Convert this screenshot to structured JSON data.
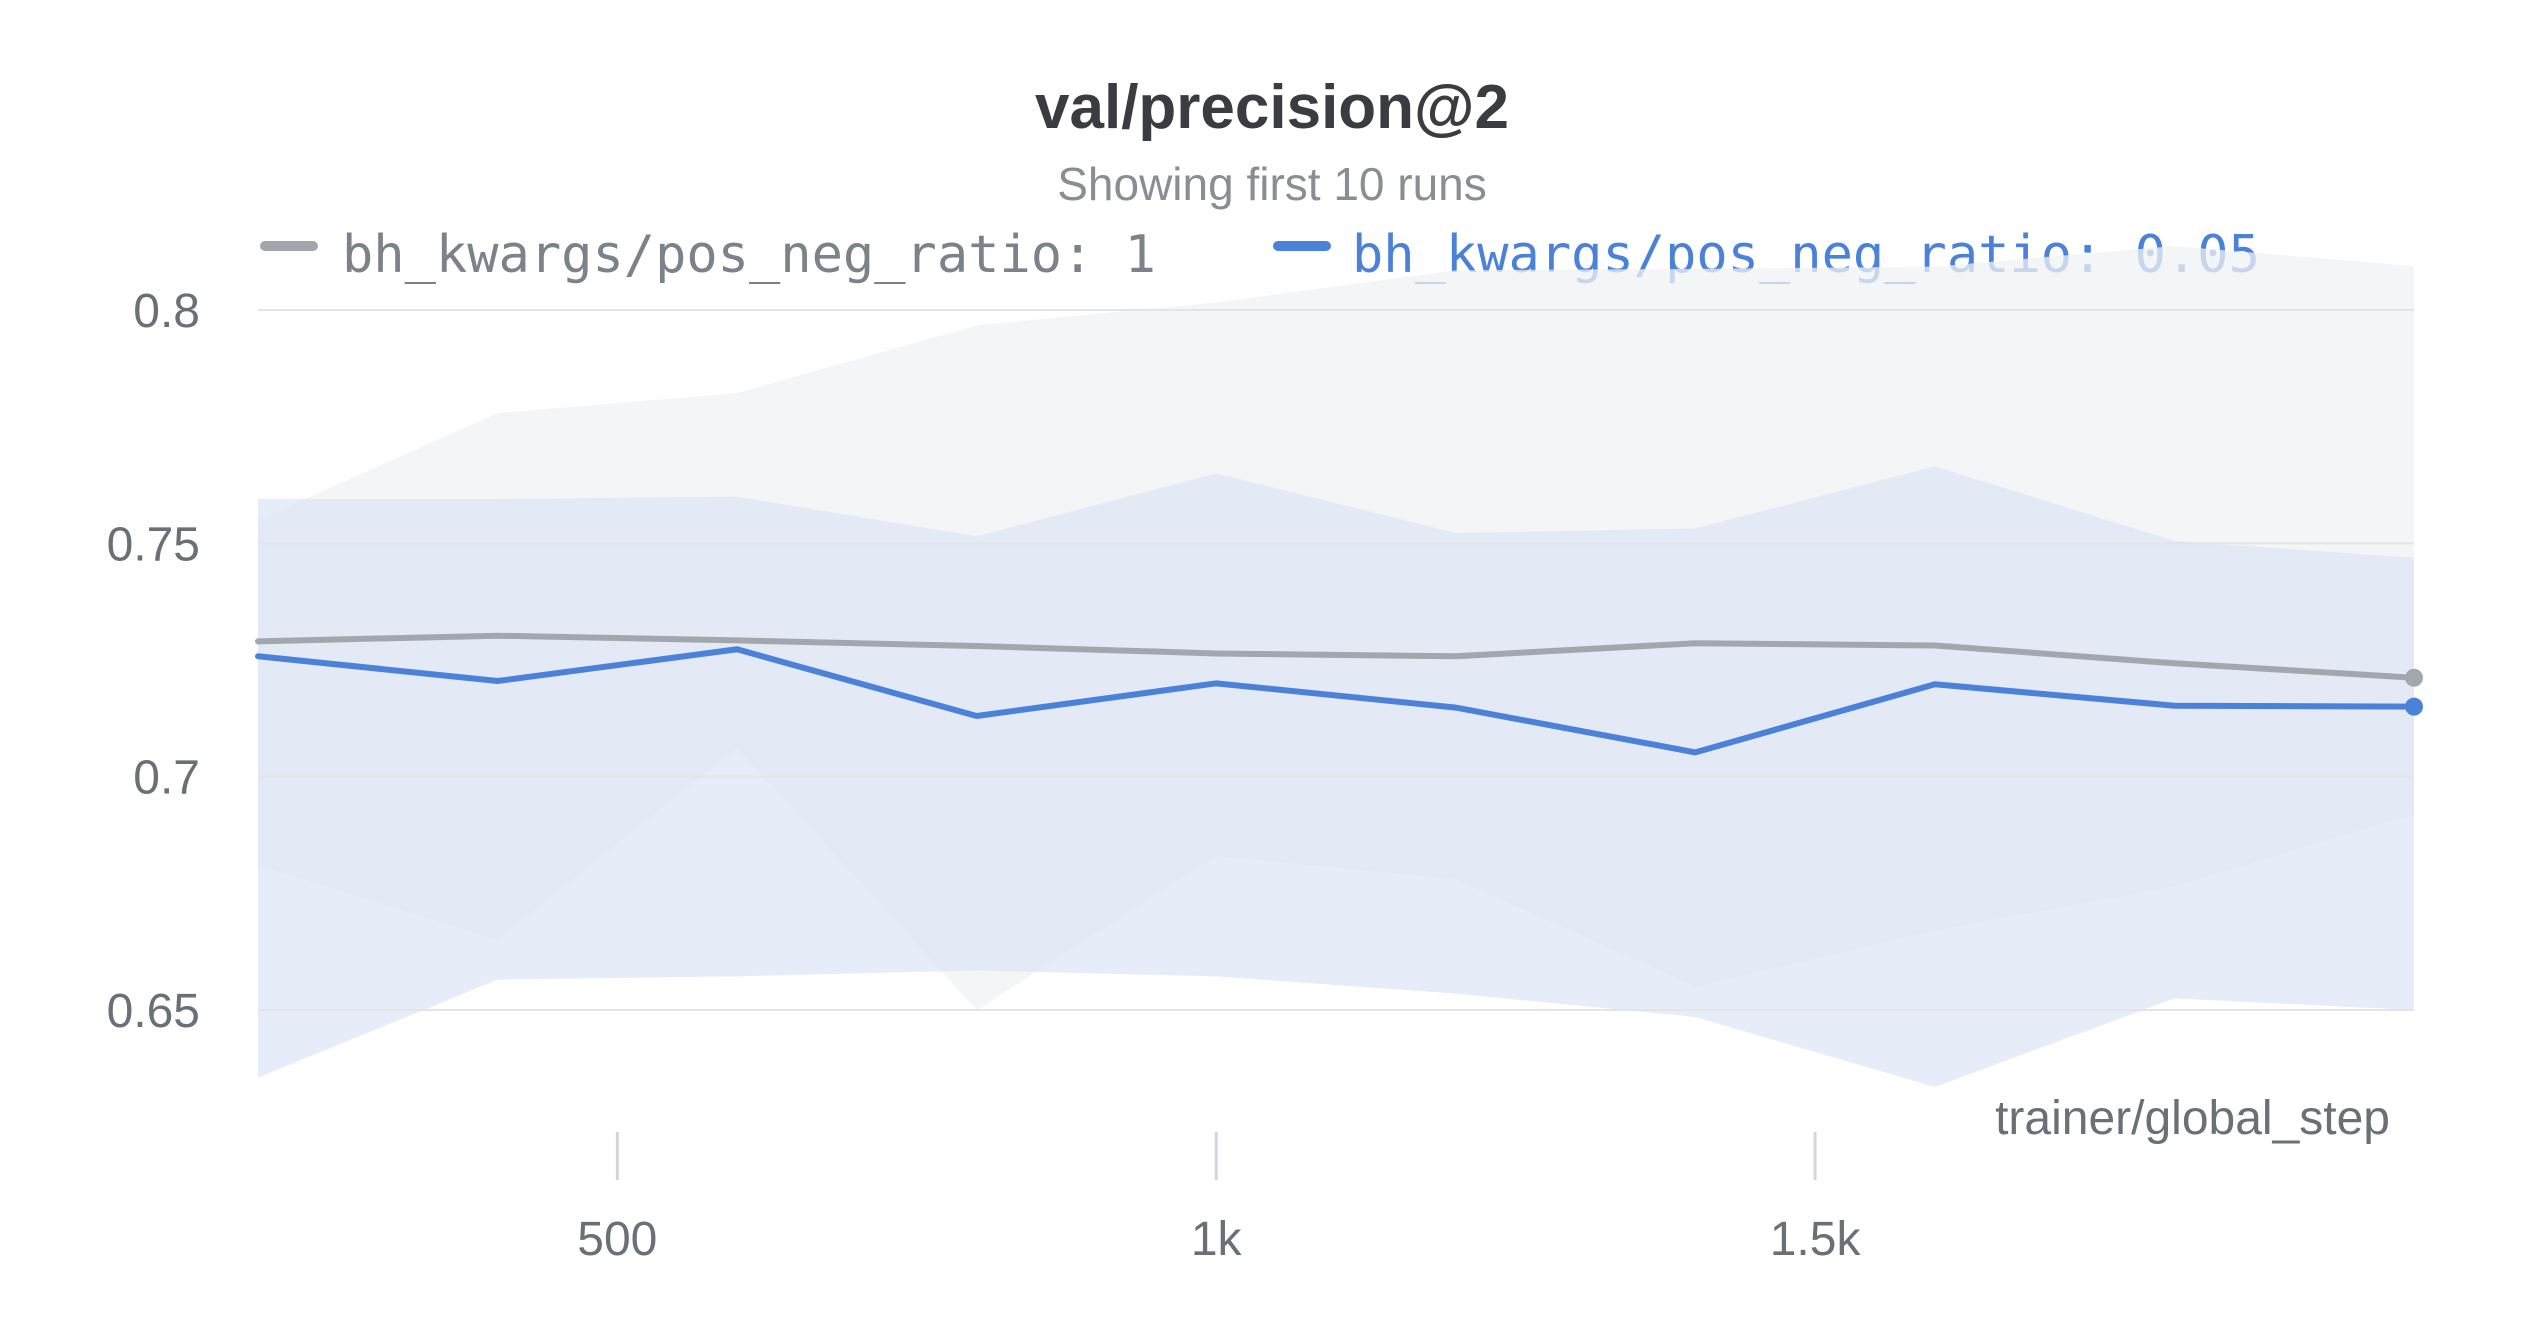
{
  "chart_data": {
    "type": "line",
    "title": "val/precision@2",
    "subtitle": "Showing first 10 runs",
    "xlabel": "trainer/global_step",
    "ylabel": "",
    "x": [
      200,
      400,
      600,
      800,
      1000,
      1200,
      1400,
      1600,
      1800,
      2000
    ],
    "xlim": [
      200,
      2000
    ],
    "ylim": [
      0.635,
      0.815
    ],
    "x_ticks": [
      500,
      1000,
      1500
    ],
    "x_tick_labels": [
      "500",
      "1k",
      "1.5k"
    ],
    "y_ticks": [
      0.65,
      0.7,
      0.75,
      0.8
    ],
    "y_tick_labels": [
      "0.65",
      "0.7",
      "0.75",
      "0.8"
    ],
    "grid": true,
    "legend_position": "top",
    "series": [
      {
        "name": "bh_kwargs/pos_neg_ratio: 1",
        "color": "#a2a6ad",
        "band_color": "#f0f1f3",
        "values": [
          0.729,
          0.7302,
          0.7292,
          0.728,
          0.7264,
          0.7258,
          0.7286,
          0.7281,
          0.7243,
          0.7212
        ],
        "upper": [
          0.755,
          0.7779,
          0.7822,
          0.7967,
          0.8016,
          0.8085,
          0.8088,
          0.8093,
          0.8137,
          0.8094
        ],
        "lower": [
          0.681,
          0.665,
          0.706,
          0.65,
          0.683,
          0.678,
          0.655,
          0.667,
          0.6765,
          0.692
        ]
      },
      {
        "name": "bh_kwargs/pos_neg_ratio: 0.05",
        "color": "#4b81d9",
        "band_color": "#dce6f5",
        "values": [
          0.7258,
          0.7205,
          0.7273,
          0.713,
          0.72,
          0.7148,
          0.7052,
          0.7198,
          0.7152,
          0.715
        ],
        "upper": [
          0.7595,
          0.7595,
          0.76,
          0.7515,
          0.765,
          0.7522,
          0.7532,
          0.7665,
          0.7505,
          0.7469
        ],
        "lower": [
          0.6355,
          0.6565,
          0.6572,
          0.6585,
          0.6572,
          0.6535,
          0.6485,
          0.6335,
          0.6525,
          0.65
        ]
      }
    ]
  }
}
